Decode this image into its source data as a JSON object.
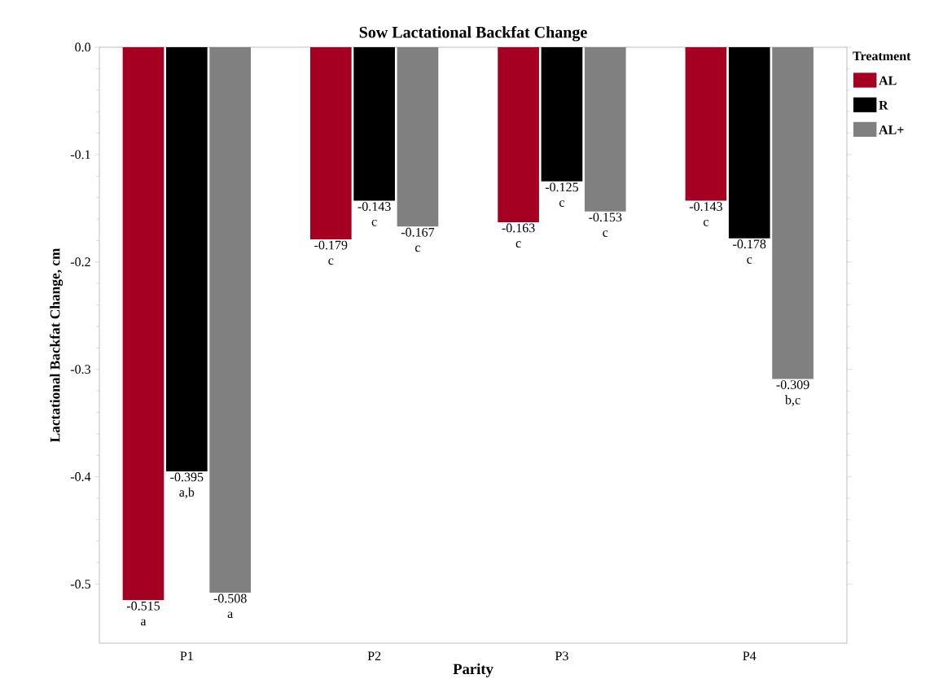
{
  "chart_data": {
    "type": "bar",
    "title": "Sow Lactational Backfat Change",
    "xlabel": "Parity",
    "ylabel": "Lactational Backfat Change, cm",
    "legend_title": "Treatment",
    "legend": "right",
    "categories": [
      "P1",
      "P2",
      "P3",
      "P4"
    ],
    "series": [
      {
        "name": "AL",
        "color": "#a50021",
        "values": [
          -0.515,
          -0.179,
          -0.163,
          -0.143
        ],
        "value_labels": [
          "-0.515 a",
          "-0.179 c",
          "-0.163 c",
          "-0.143 c"
        ]
      },
      {
        "name": "R",
        "color": "#000000",
        "values": [
          -0.395,
          -0.143,
          -0.125,
          -0.178
        ],
        "value_labels": [
          "-0.395 a,b",
          "-0.143 c",
          "-0.125 c",
          "-0.178 c"
        ]
      },
      {
        "name": "AL+",
        "color": "#808080",
        "values": [
          -0.508,
          -0.167,
          -0.153,
          -0.309
        ],
        "value_labels": [
          "-0.508 a",
          "-0.167 c",
          "-0.153 c",
          "-0.309 b,c"
        ]
      }
    ],
    "ylim": [
      -0.555,
      0.0
    ],
    "yticks": [
      {
        "value": 0.0,
        "label": "0.0"
      },
      {
        "value": -0.1,
        "label": "-0.1"
      },
      {
        "value": -0.2,
        "label": "-0.2"
      },
      {
        "value": -0.3,
        "label": "-0.3"
      },
      {
        "value": -0.4,
        "label": "-0.4"
      },
      {
        "value": -0.5,
        "label": "-0.5"
      }
    ]
  }
}
